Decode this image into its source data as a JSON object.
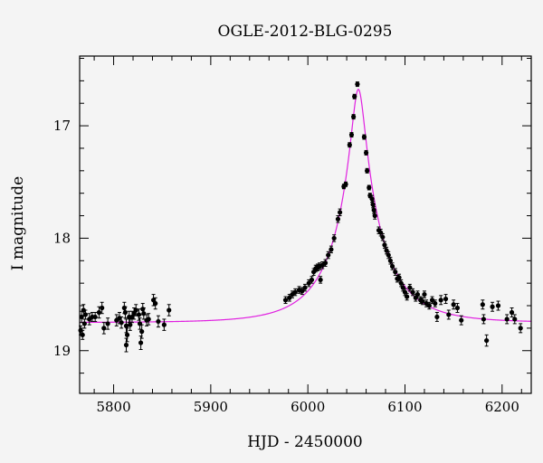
{
  "chart_data": {
    "type": "scatter",
    "title": "OGLE-2012-BLG-0295",
    "xlabel": "HJD - 2450000",
    "ylabel": "I magnitude",
    "xlim": [
      5765,
      6230
    ],
    "ylim": [
      19.38,
      16.38
    ],
    "y_inverted": true,
    "x_major_ticks": [
      5800,
      5900,
      6000,
      6100,
      6200
    ],
    "y_major_ticks": [
      17,
      18,
      19
    ],
    "x_minor_step": 20,
    "y_minor_step": 0.2,
    "grid": false,
    "colors": {
      "points": "#000000",
      "model": "#e020e0",
      "background": "#f4f4f4"
    },
    "model": {
      "name": "",
      "t0": 6052,
      "tE": 55,
      "u0": 0.12,
      "baseline": 18.75,
      "fs": 0.78
    },
    "points": [
      {
        "x": 5766,
        "y": 18.82,
        "e": 0.04
      },
      {
        "x": 5767,
        "y": 18.7,
        "e": 0.05
      },
      {
        "x": 5768,
        "y": 18.86,
        "e": 0.04
      },
      {
        "x": 5769,
        "y": 18.64,
        "e": 0.05
      },
      {
        "x": 5770,
        "y": 18.76,
        "e": 0.04
      },
      {
        "x": 5771,
        "y": 18.68,
        "e": 0.04
      },
      {
        "x": 5775,
        "y": 18.72,
        "e": 0.05
      },
      {
        "x": 5778,
        "y": 18.7,
        "e": 0.04
      },
      {
        "x": 5781,
        "y": 18.7,
        "e": 0.04
      },
      {
        "x": 5785,
        "y": 18.66,
        "e": 0.05
      },
      {
        "x": 5788,
        "y": 18.62,
        "e": 0.05
      },
      {
        "x": 5790,
        "y": 18.8,
        "e": 0.05
      },
      {
        "x": 5794,
        "y": 18.76,
        "e": 0.05
      },
      {
        "x": 5803,
        "y": 18.73,
        "e": 0.05
      },
      {
        "x": 5806,
        "y": 18.71,
        "e": 0.05
      },
      {
        "x": 5808,
        "y": 18.75,
        "e": 0.05
      },
      {
        "x": 5811,
        "y": 18.62,
        "e": 0.05
      },
      {
        "x": 5812,
        "y": 18.66,
        "e": 0.05
      },
      {
        "x": 5813,
        "y": 18.78,
        "e": 0.06
      },
      {
        "x": 5813,
        "y": 18.95,
        "e": 0.06
      },
      {
        "x": 5814,
        "y": 18.86,
        "e": 0.06
      },
      {
        "x": 5816,
        "y": 18.7,
        "e": 0.05
      },
      {
        "x": 5817,
        "y": 18.77,
        "e": 0.05
      },
      {
        "x": 5819,
        "y": 18.7,
        "e": 0.05
      },
      {
        "x": 5821,
        "y": 18.67,
        "e": 0.05
      },
      {
        "x": 5823,
        "y": 18.64,
        "e": 0.05
      },
      {
        "x": 5826,
        "y": 18.68,
        "e": 0.05
      },
      {
        "x": 5827,
        "y": 18.76,
        "e": 0.05
      },
      {
        "x": 5828,
        "y": 18.93,
        "e": 0.06
      },
      {
        "x": 5829,
        "y": 18.83,
        "e": 0.06
      },
      {
        "x": 5830,
        "y": 18.63,
        "e": 0.05
      },
      {
        "x": 5831,
        "y": 18.67,
        "e": 0.05
      },
      {
        "x": 5834,
        "y": 18.73,
        "e": 0.05
      },
      {
        "x": 5836,
        "y": 18.72,
        "e": 0.05
      },
      {
        "x": 5841,
        "y": 18.55,
        "e": 0.05
      },
      {
        "x": 5843,
        "y": 18.58,
        "e": 0.05
      },
      {
        "x": 5846,
        "y": 18.74,
        "e": 0.05
      },
      {
        "x": 5852,
        "y": 18.77,
        "e": 0.05
      },
      {
        "x": 5857,
        "y": 18.64,
        "e": 0.05
      },
      {
        "x": 5977,
        "y": 18.55,
        "e": 0.03
      },
      {
        "x": 5981,
        "y": 18.53,
        "e": 0.03
      },
      {
        "x": 5984,
        "y": 18.5,
        "e": 0.03
      },
      {
        "x": 5987,
        "y": 18.48,
        "e": 0.03
      },
      {
        "x": 5991,
        "y": 18.46,
        "e": 0.03
      },
      {
        "x": 5994,
        "y": 18.47,
        "e": 0.03
      },
      {
        "x": 5997,
        "y": 18.44,
        "e": 0.03
      },
      {
        "x": 6001,
        "y": 18.4,
        "e": 0.03
      },
      {
        "x": 6004,
        "y": 18.37,
        "e": 0.03
      },
      {
        "x": 6006,
        "y": 18.3,
        "e": 0.03
      },
      {
        "x": 6008,
        "y": 18.27,
        "e": 0.03
      },
      {
        "x": 6010,
        "y": 18.26,
        "e": 0.03
      },
      {
        "x": 6012,
        "y": 18.25,
        "e": 0.03
      },
      {
        "x": 6013,
        "y": 18.37,
        "e": 0.03
      },
      {
        "x": 6015,
        "y": 18.24,
        "e": 0.03
      },
      {
        "x": 6018,
        "y": 18.22,
        "e": 0.03
      },
      {
        "x": 6021,
        "y": 18.15,
        "e": 0.03
      },
      {
        "x": 6024,
        "y": 18.1,
        "e": 0.03
      },
      {
        "x": 6027,
        "y": 18.0,
        "e": 0.03
      },
      {
        "x": 6031,
        "y": 17.83,
        "e": 0.03
      },
      {
        "x": 6033,
        "y": 17.77,
        "e": 0.03
      },
      {
        "x": 6037,
        "y": 17.54,
        "e": 0.02
      },
      {
        "x": 6039,
        "y": 17.52,
        "e": 0.02
      },
      {
        "x": 6043,
        "y": 17.17,
        "e": 0.02
      },
      {
        "x": 6045,
        "y": 17.08,
        "e": 0.02
      },
      {
        "x": 6047,
        "y": 16.92,
        "e": 0.02
      },
      {
        "x": 6048,
        "y": 16.74,
        "e": 0.02
      },
      {
        "x": 6051,
        "y": 16.63,
        "e": 0.02
      },
      {
        "x": 6058,
        "y": 17.1,
        "e": 0.02
      },
      {
        "x": 6060,
        "y": 17.24,
        "e": 0.02
      },
      {
        "x": 6061,
        "y": 17.4,
        "e": 0.02
      },
      {
        "x": 6063,
        "y": 17.55,
        "e": 0.02
      },
      {
        "x": 6064,
        "y": 17.62,
        "e": 0.02
      },
      {
        "x": 6066,
        "y": 17.65,
        "e": 0.03
      },
      {
        "x": 6067,
        "y": 17.7,
        "e": 0.03
      },
      {
        "x": 6068,
        "y": 17.75,
        "e": 0.03
      },
      {
        "x": 6069,
        "y": 17.8,
        "e": 0.03
      },
      {
        "x": 6073,
        "y": 17.93,
        "e": 0.03
      },
      {
        "x": 6075,
        "y": 17.95,
        "e": 0.03
      },
      {
        "x": 6077,
        "y": 17.99,
        "e": 0.03
      },
      {
        "x": 6079,
        "y": 18.06,
        "e": 0.03
      },
      {
        "x": 6081,
        "y": 18.11,
        "e": 0.03
      },
      {
        "x": 6083,
        "y": 18.15,
        "e": 0.03
      },
      {
        "x": 6085,
        "y": 18.2,
        "e": 0.03
      },
      {
        "x": 6087,
        "y": 18.25,
        "e": 0.03
      },
      {
        "x": 6090,
        "y": 18.3,
        "e": 0.03
      },
      {
        "x": 6092,
        "y": 18.36,
        "e": 0.03
      },
      {
        "x": 6094,
        "y": 18.35,
        "e": 0.03
      },
      {
        "x": 6096,
        "y": 18.4,
        "e": 0.03
      },
      {
        "x": 6098,
        "y": 18.44,
        "e": 0.03
      },
      {
        "x": 6100,
        "y": 18.48,
        "e": 0.03
      },
      {
        "x": 6102,
        "y": 18.52,
        "e": 0.03
      },
      {
        "x": 6105,
        "y": 18.44,
        "e": 0.03
      },
      {
        "x": 6108,
        "y": 18.48,
        "e": 0.03
      },
      {
        "x": 6111,
        "y": 18.53,
        "e": 0.03
      },
      {
        "x": 6113,
        "y": 18.5,
        "e": 0.03
      },
      {
        "x": 6116,
        "y": 18.55,
        "e": 0.03
      },
      {
        "x": 6118,
        "y": 18.56,
        "e": 0.03
      },
      {
        "x": 6120,
        "y": 18.5,
        "e": 0.03
      },
      {
        "x": 6122,
        "y": 18.58,
        "e": 0.03
      },
      {
        "x": 6125,
        "y": 18.6,
        "e": 0.03
      },
      {
        "x": 6128,
        "y": 18.55,
        "e": 0.03
      },
      {
        "x": 6131,
        "y": 18.58,
        "e": 0.03
      },
      {
        "x": 6133,
        "y": 18.7,
        "e": 0.04
      },
      {
        "x": 6137,
        "y": 18.55,
        "e": 0.04
      },
      {
        "x": 6142,
        "y": 18.54,
        "e": 0.04
      },
      {
        "x": 6145,
        "y": 18.68,
        "e": 0.04
      },
      {
        "x": 6150,
        "y": 18.59,
        "e": 0.04
      },
      {
        "x": 6154,
        "y": 18.62,
        "e": 0.04
      },
      {
        "x": 6158,
        "y": 18.73,
        "e": 0.04
      },
      {
        "x": 6180,
        "y": 18.59,
        "e": 0.04
      },
      {
        "x": 6181,
        "y": 18.72,
        "e": 0.04
      },
      {
        "x": 6184,
        "y": 18.91,
        "e": 0.05
      },
      {
        "x": 6190,
        "y": 18.61,
        "e": 0.04
      },
      {
        "x": 6196,
        "y": 18.6,
        "e": 0.04
      },
      {
        "x": 6205,
        "y": 18.72,
        "e": 0.04
      },
      {
        "x": 6210,
        "y": 18.66,
        "e": 0.04
      },
      {
        "x": 6213,
        "y": 18.72,
        "e": 0.04
      },
      {
        "x": 6219,
        "y": 18.8,
        "e": 0.04
      }
    ]
  }
}
